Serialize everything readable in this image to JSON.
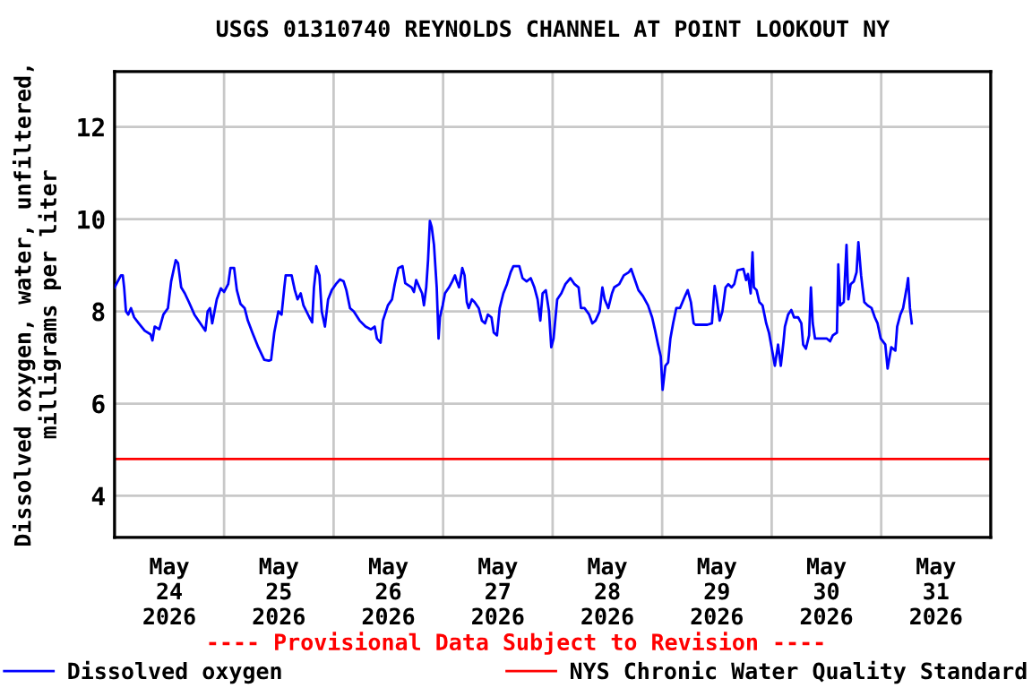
{
  "chart_data": {
    "type": "line",
    "title": "USGS 01310740 REYNOLDS CHANNEL AT POINT LOOKOUT NY",
    "ylabel": "Dissolved oxygen, water, unfiltered,\nmilligrams per liter",
    "annotations": [
      "---- Provisional Data Subject to Revision ----"
    ],
    "xlim": [
      "2026-05-24T00:00",
      "2026-06-01T00:00"
    ],
    "xticks": [
      {
        "value": "2026-05-24T12:00",
        "label": "May\n24\n2026"
      },
      {
        "value": "2026-05-25T12:00",
        "label": "May\n25\n2026"
      },
      {
        "value": "2026-05-26T12:00",
        "label": "May\n26\n2026"
      },
      {
        "value": "2026-05-27T12:00",
        "label": "May\n27\n2026"
      },
      {
        "value": "2026-05-28T12:00",
        "label": "May\n28\n2026"
      },
      {
        "value": "2026-05-29T12:00",
        "label": "May\n29\n2026"
      },
      {
        "value": "2026-05-30T12:00",
        "label": "May\n30\n2026"
      },
      {
        "value": "2026-05-31T12:00",
        "label": "May\n31\n2026"
      },
      {
        "value": "2026-05-25T00:00",
        "label": null
      },
      {
        "value": "2026-05-26T00:00",
        "label": null
      },
      {
        "value": "2026-05-27T00:00",
        "label": null
      },
      {
        "value": "2026-05-28T00:00",
        "label": null
      },
      {
        "value": "2026-05-29T00:00",
        "label": null
      },
      {
        "value": "2026-05-30T00:00",
        "label": null
      },
      {
        "value": "2026-05-31T00:00",
        "label": null
      }
    ],
    "ylim": [
      3.1,
      13.2
    ],
    "yticks": [
      4,
      6,
      8,
      10,
      12
    ],
    "grid": true,
    "legend": "bottom",
    "ref_lines": [
      {
        "axis": "y",
        "value": 4.8,
        "label": "NYS Chronic Water Quality Standard",
        "color": "#ff0000"
      }
    ],
    "series": [
      {
        "name": "Dissolved oxygen",
        "color": "#0000ff",
        "x": [
          "2026-05-24T00:00",
          "2026-05-24T01:24",
          "2026-05-24T01:48",
          "2026-05-24T02:06",
          "2026-05-24T02:30",
          "2026-05-24T03:00",
          "2026-05-24T03:36",
          "2026-05-24T04:18",
          "2026-05-24T05:18",
          "2026-05-24T06:36",
          "2026-05-24T07:54",
          "2026-05-24T08:18",
          "2026-05-24T08:48",
          "2026-05-24T09:48",
          "2026-05-24T10:42",
          "2026-05-24T11:42",
          "2026-05-24T12:24",
          "2026-05-24T13:24",
          "2026-05-24T13:54",
          "2026-05-24T14:36",
          "2026-05-24T15:24",
          "2026-05-24T16:18",
          "2026-05-24T17:30",
          "2026-05-24T18:48",
          "2026-05-24T19:54",
          "2026-05-24T20:24",
          "2026-05-24T20:54",
          "2026-05-24T21:24",
          "2026-05-24T22:24",
          "2026-05-24T23:18",
          "2026-05-25T00:00",
          "2026-05-25T00:54",
          "2026-05-25T01:24",
          "2026-05-25T02:12",
          "2026-05-25T02:48",
          "2026-05-25T03:36",
          "2026-05-25T04:30",
          "2026-05-25T05:12",
          "2026-05-25T06:12",
          "2026-05-25T07:30",
          "2026-05-25T08:48",
          "2026-05-25T09:48",
          "2026-05-25T10:18",
          "2026-05-25T11:00",
          "2026-05-25T11:54",
          "2026-05-25T12:36",
          "2026-05-25T13:12",
          "2026-05-25T13:30",
          "2026-05-25T14:48",
          "2026-05-25T15:30",
          "2026-05-25T16:06",
          "2026-05-25T16:48",
          "2026-05-25T17:24",
          "2026-05-25T18:42",
          "2026-05-25T19:18",
          "2026-05-25T19:42",
          "2026-05-25T20:12",
          "2026-05-25T20:54",
          "2026-05-25T21:24",
          "2026-05-25T22:06",
          "2026-05-25T22:48",
          "2026-05-25T23:36",
          "2026-05-26T00:30",
          "2026-05-26T01:24",
          "2026-05-26T02:12",
          "2026-05-26T02:48",
          "2026-05-26T03:36",
          "2026-05-26T04:24",
          "2026-05-26T05:42",
          "2026-05-26T07:00",
          "2026-05-26T08:12",
          "2026-05-26T09:00",
          "2026-05-26T09:30",
          "2026-05-26T10:18",
          "2026-05-26T10:48",
          "2026-05-26T11:54",
          "2026-05-26T12:48",
          "2026-05-26T13:24",
          "2026-05-26T14:12",
          "2026-05-26T15:06",
          "2026-05-26T15:42",
          "2026-05-26T17:06",
          "2026-05-26T17:36",
          "2026-05-26T18:06",
          "2026-05-26T18:48",
          "2026-05-26T19:24",
          "2026-05-26T19:48",
          "2026-05-26T20:18",
          "2026-05-26T20:42",
          "2026-05-26T21:06",
          "2026-05-26T21:30",
          "2026-05-26T22:00",
          "2026-05-26T22:36",
          "2026-05-26T23:00",
          "2026-05-26T23:18",
          "2026-05-26T23:54",
          "2026-05-27T00:24",
          "2026-05-27T01:18",
          "2026-05-27T02:00",
          "2026-05-27T02:36",
          "2026-05-27T03:00",
          "2026-05-27T03:30",
          "2026-05-27T04:12",
          "2026-05-27T04:42",
          "2026-05-27T05:12",
          "2026-05-27T05:36",
          "2026-05-27T06:18",
          "2026-05-27T06:54",
          "2026-05-27T07:48",
          "2026-05-27T08:30",
          "2026-05-27T09:12",
          "2026-05-27T09:48",
          "2026-05-27T10:36",
          "2026-05-27T11:06",
          "2026-05-27T11:48",
          "2026-05-27T12:24",
          "2026-05-27T13:12",
          "2026-05-27T14:00",
          "2026-05-27T14:48",
          "2026-05-27T15:24",
          "2026-05-27T16:42",
          "2026-05-27T17:24",
          "2026-05-27T18:18",
          "2026-05-27T19:12",
          "2026-05-27T20:00",
          "2026-05-27T20:42",
          "2026-05-27T21:18",
          "2026-05-27T21:48",
          "2026-05-27T22:30",
          "2026-05-27T23:12",
          "2026-05-27T23:42",
          "2026-05-28T00:12",
          "2026-05-28T01:00",
          "2026-05-28T01:54",
          "2026-05-28T02:48",
          "2026-05-28T03:54",
          "2026-05-28T04:48",
          "2026-05-28T05:42",
          "2026-05-28T06:12",
          "2026-05-28T07:00",
          "2026-05-28T08:00",
          "2026-05-28T08:42",
          "2026-05-28T09:24",
          "2026-05-28T10:18",
          "2026-05-28T10:54",
          "2026-05-28T11:24",
          "2026-05-28T12:12",
          "2026-05-28T13:00",
          "2026-05-28T13:30",
          "2026-05-28T14:36",
          "2026-05-28T15:36",
          "2026-05-28T16:42",
          "2026-05-28T17:12",
          "2026-05-28T17:54",
          "2026-05-28T18:48",
          "2026-05-28T19:48",
          "2026-05-28T20:54",
          "2026-05-28T21:48",
          "2026-05-28T22:24",
          "2026-05-28T23:06",
          "2026-05-28T23:42",
          "2026-05-29T00:06",
          "2026-05-29T00:42",
          "2026-05-29T01:18",
          "2026-05-29T01:48",
          "2026-05-29T02:24",
          "2026-05-29T03:06",
          "2026-05-29T03:54",
          "2026-05-29T05:00",
          "2026-05-29T05:36",
          "2026-05-29T06:18",
          "2026-05-29T06:54",
          "2026-05-29T07:18",
          "2026-05-29T08:36",
          "2026-05-29T09:54",
          "2026-05-29T10:54",
          "2026-05-29T11:30",
          "2026-05-29T11:54",
          "2026-05-29T12:36",
          "2026-05-29T13:12",
          "2026-05-29T13:54",
          "2026-05-29T14:30",
          "2026-05-29T15:12",
          "2026-05-29T15:48",
          "2026-05-29T16:30",
          "2026-05-29T17:48",
          "2026-05-29T18:24",
          "2026-05-29T18:48",
          "2026-05-29T19:24",
          "2026-05-29T19:48",
          "2026-05-29T20:06",
          "2026-05-29T20:42",
          "2026-05-29T21:18",
          "2026-05-29T22:00",
          "2026-05-29T22:48",
          "2026-05-29T23:24",
          "2026-05-30T00:06",
          "2026-05-30T00:42",
          "2026-05-30T01:24",
          "2026-05-30T02:00",
          "2026-05-30T02:36",
          "2026-05-30T02:54",
          "2026-05-30T03:36",
          "2026-05-30T04:18",
          "2026-05-30T04:54",
          "2026-05-30T05:48",
          "2026-05-30T06:30",
          "2026-05-30T06:54",
          "2026-05-30T07:30",
          "2026-05-30T08:12",
          "2026-05-30T08:36",
          "2026-05-30T09:00",
          "2026-05-30T09:30",
          "2026-05-30T10:48",
          "2026-05-30T12:06",
          "2026-05-30T12:48",
          "2026-05-30T13:24",
          "2026-05-30T14:18",
          "2026-05-30T14:36",
          "2026-05-30T15:00",
          "2026-05-30T15:48",
          "2026-05-30T16:24",
          "2026-05-30T16:48",
          "2026-05-30T17:18",
          "2026-05-30T18:00",
          "2026-05-30T18:36",
          "2026-05-30T19:00",
          "2026-05-30T19:36",
          "2026-05-30T19:54",
          "2026-05-30T20:18",
          "2026-05-30T21:00",
          "2026-05-30T21:54",
          "2026-05-30T22:36",
          "2026-05-30T23:12",
          "2026-05-30T23:54",
          "2026-05-31T00:54",
          "2026-05-31T01:24",
          "2026-05-31T02:12",
          "2026-05-31T03:06",
          "2026-05-31T03:30",
          "2026-05-31T04:12",
          "2026-05-31T04:48",
          "2026-05-31T05:36",
          "2026-05-31T05:54",
          "2026-05-31T06:18",
          "2026-05-31T06:42"
        ],
        "values": [
          8.52,
          8.78,
          8.78,
          8.52,
          8.0,
          7.93,
          8.07,
          7.87,
          7.74,
          7.58,
          7.5,
          7.37,
          7.67,
          7.61,
          7.93,
          8.07,
          8.65,
          9.11,
          9.05,
          8.52,
          8.39,
          8.2,
          7.93,
          7.74,
          7.58,
          8.0,
          8.07,
          7.74,
          8.26,
          8.5,
          8.42,
          8.59,
          8.94,
          8.94,
          8.46,
          8.16,
          8.07,
          7.8,
          7.54,
          7.22,
          6.95,
          6.93,
          6.95,
          7.54,
          8.0,
          7.93,
          8.52,
          8.78,
          8.78,
          8.46,
          8.26,
          8.39,
          8.13,
          7.87,
          7.76,
          8.52,
          8.98,
          8.78,
          8.0,
          7.67,
          8.26,
          8.46,
          8.59,
          8.69,
          8.65,
          8.46,
          8.07,
          8.0,
          7.8,
          7.67,
          7.61,
          7.67,
          7.41,
          7.32,
          7.8,
          8.13,
          8.26,
          8.59,
          8.94,
          8.98,
          8.61,
          8.52,
          8.42,
          8.68,
          8.52,
          8.39,
          8.13,
          8.52,
          9.11,
          9.96,
          9.83,
          9.44,
          8.52,
          7.41,
          7.87,
          8.13,
          8.39,
          8.52,
          8.65,
          8.78,
          8.65,
          8.52,
          8.94,
          8.78,
          8.2,
          8.07,
          8.26,
          8.2,
          8.07,
          7.8,
          7.74,
          7.93,
          7.87,
          7.54,
          7.48,
          8.07,
          8.39,
          8.59,
          8.85,
          8.98,
          8.98,
          8.72,
          8.65,
          8.72,
          8.52,
          8.26,
          7.8,
          8.39,
          8.46,
          8.0,
          7.22,
          7.41,
          8.26,
          8.39,
          8.59,
          8.72,
          8.59,
          8.52,
          8.07,
          8.07,
          7.93,
          7.74,
          7.8,
          8.0,
          8.52,
          8.26,
          8.07,
          8.39,
          8.52,
          8.59,
          8.78,
          8.85,
          8.92,
          8.72,
          8.46,
          8.33,
          8.13,
          7.87,
          7.61,
          7.28,
          7.02,
          6.3,
          6.82,
          6.89,
          7.41,
          7.74,
          8.07,
          8.07,
          8.33,
          8.46,
          8.2,
          7.74,
          7.71,
          7.71,
          7.71,
          7.74,
          8.55,
          8.33,
          7.8,
          8.0,
          8.52,
          8.59,
          8.52,
          8.59,
          8.89,
          8.92,
          8.68,
          8.81,
          8.39,
          9.28,
          8.52,
          8.46,
          8.2,
          8.13,
          7.74,
          7.54,
          7.15,
          6.82,
          7.28,
          6.82,
          7.35,
          7.67,
          7.93,
          8.03,
          7.87,
          7.87,
          7.74,
          7.28,
          7.19,
          7.48,
          8.52,
          7.74,
          7.41,
          7.41,
          7.41,
          7.35,
          7.48,
          7.54,
          9.02,
          8.13,
          8.2,
          9.44,
          8.26,
          8.59,
          8.65,
          8.85,
          9.5,
          8.78,
          8.52,
          8.2,
          8.13,
          8.07,
          7.87,
          7.74,
          7.41,
          7.28,
          6.76,
          7.22,
          7.15,
          7.67,
          7.93,
          8.07,
          8.52,
          8.72,
          8.07,
          7.74
        ]
      }
    ]
  }
}
